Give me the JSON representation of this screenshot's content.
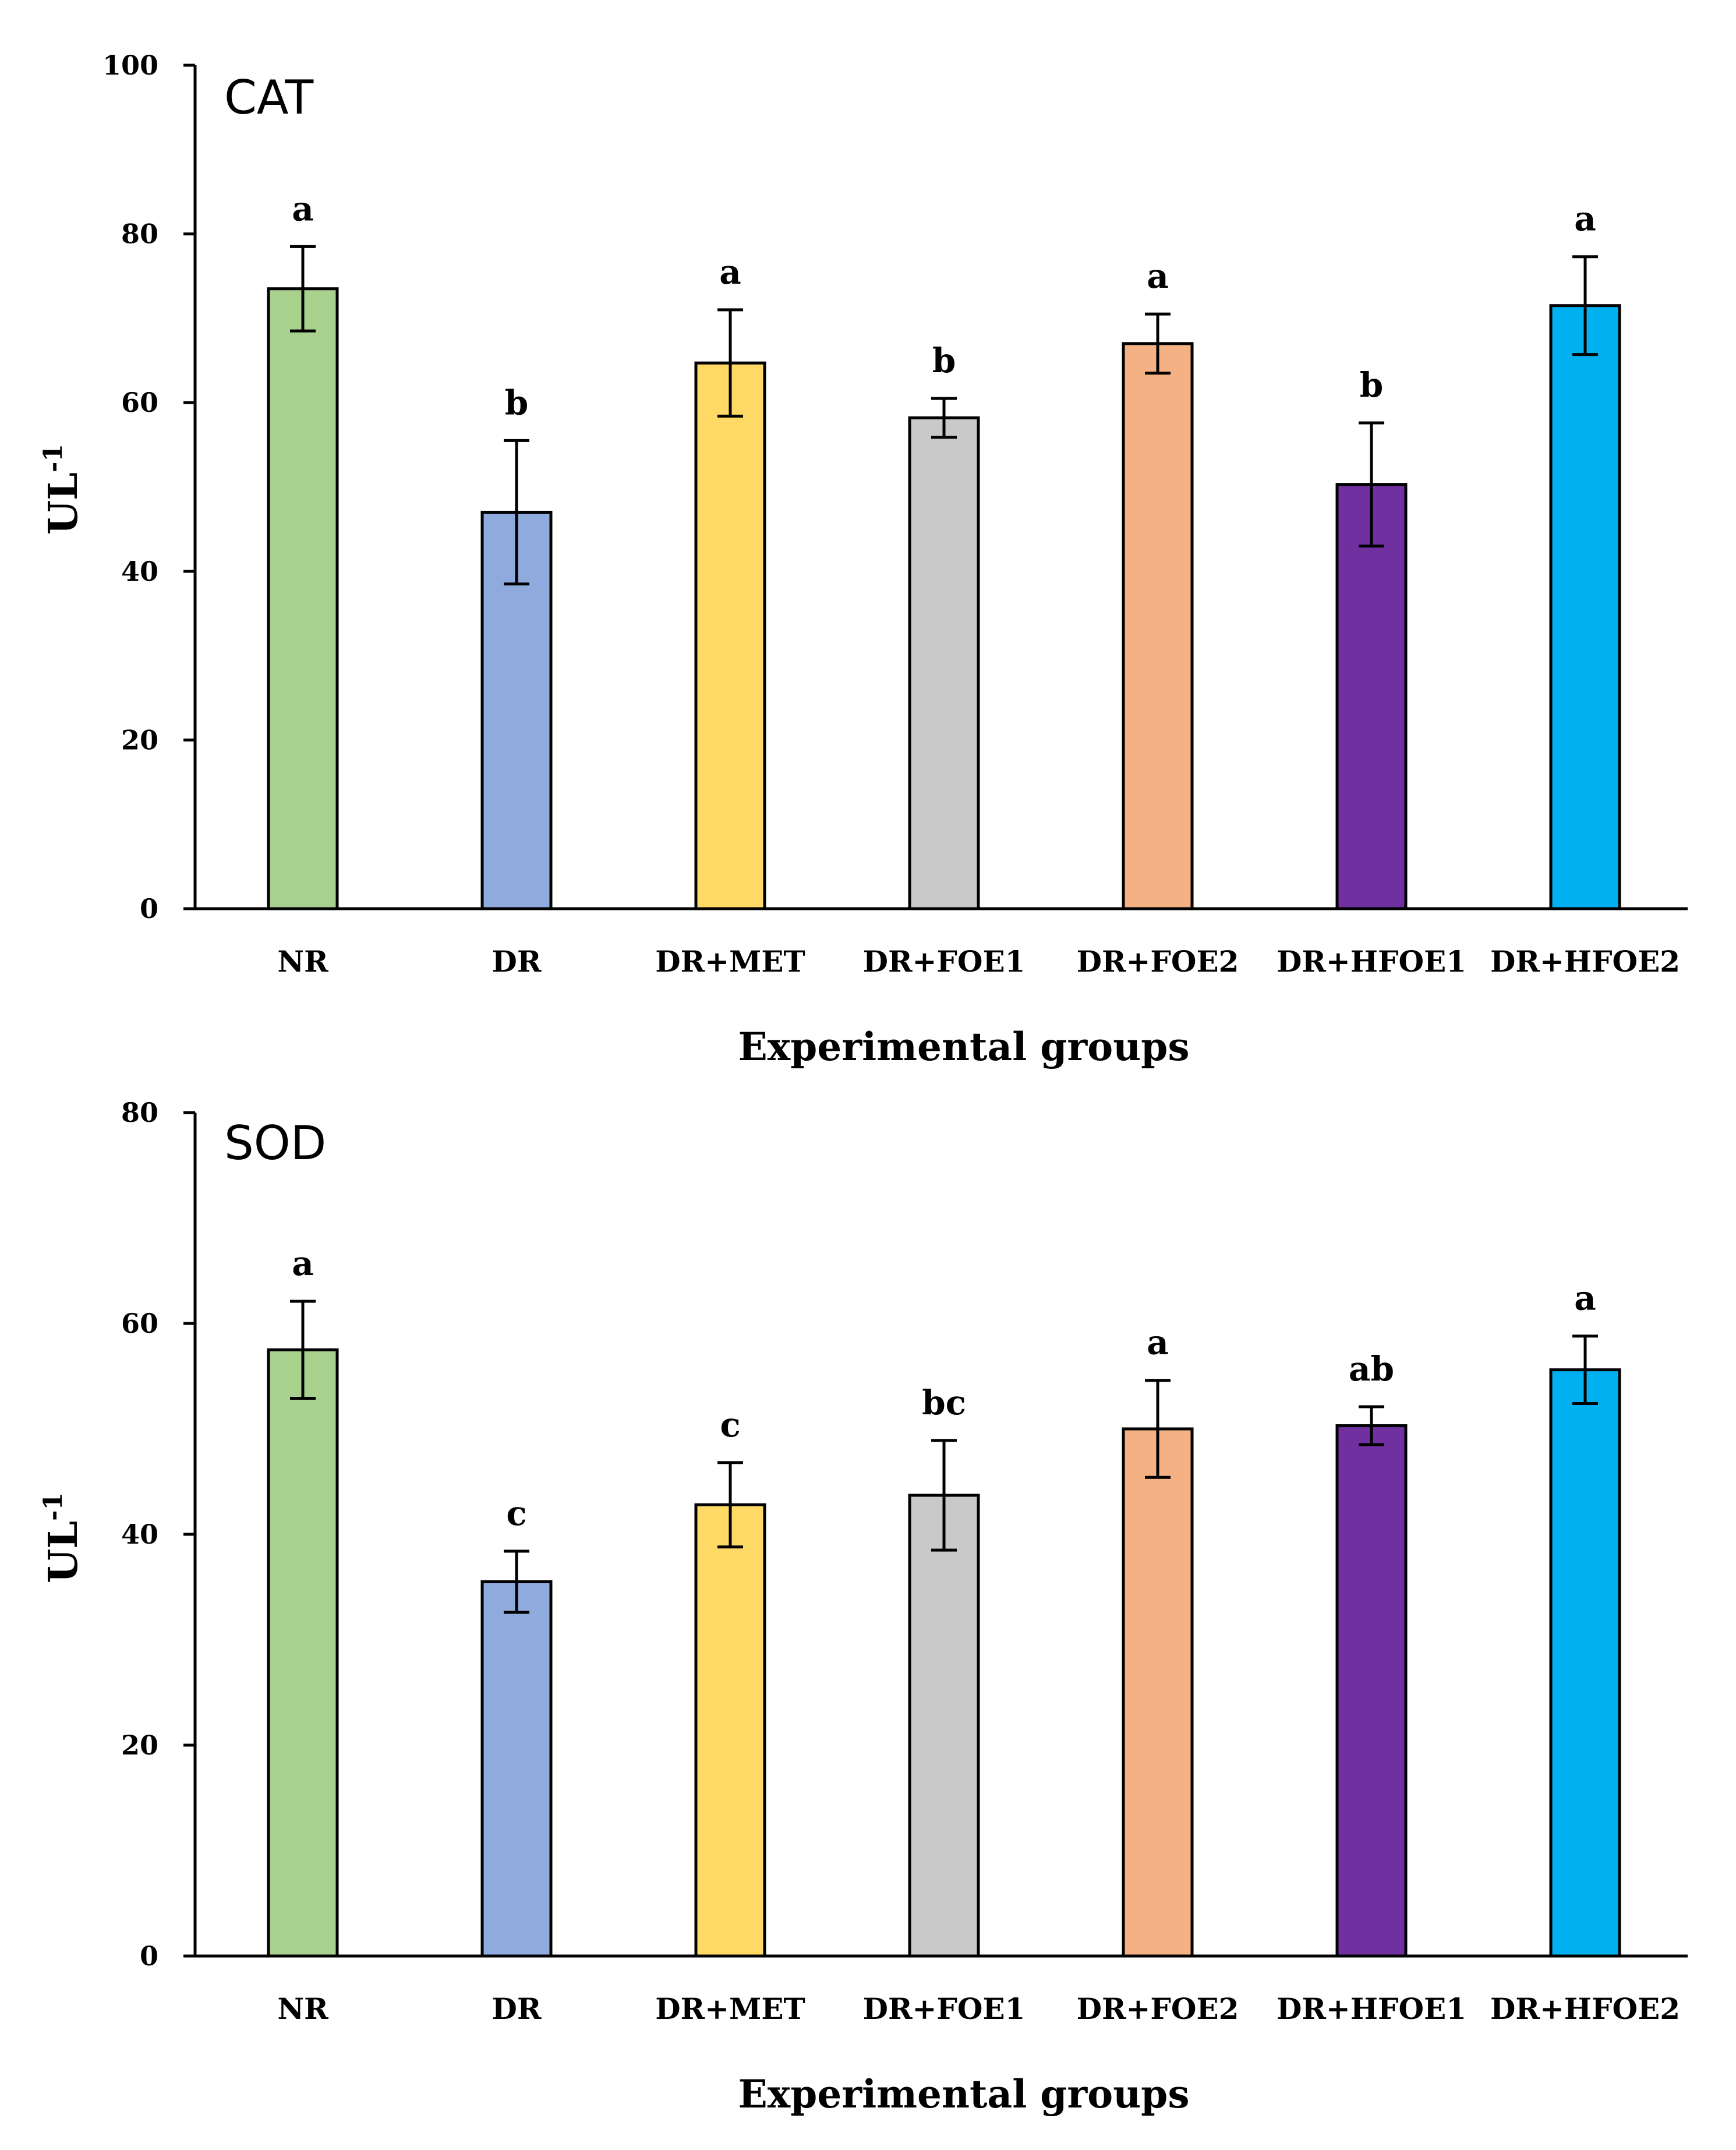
{
  "chart_data": [
    {
      "type": "bar",
      "title": "CAT",
      "xlabel": "Experimental groups",
      "ylabel": "UL",
      "ylabel_superscript": "-1",
      "ylim": [
        0,
        100
      ],
      "yticks": [
        0,
        20,
        40,
        60,
        80,
        100
      ],
      "categories": [
        "NR",
        "DR",
        "DR+MET",
        "DR+FOE1",
        "DR+FOE2",
        "DR+HFOE1",
        "DR+HFOE2"
      ],
      "values": [
        73.5,
        47,
        64.7,
        58.2,
        67,
        50.3,
        71.5
      ],
      "errors": [
        5,
        8.5,
        6.3,
        2.3,
        3.5,
        7.3,
        5.8
      ],
      "significance": [
        "a",
        "b",
        "a",
        "b",
        "a",
        "b",
        "a"
      ],
      "colors": [
        "#a9d18e",
        "#8faadc",
        "#ffd966",
        "#c9c9c9",
        "#f4b183",
        "#7030a0",
        "#00b0f0"
      ],
      "grid": false
    },
    {
      "type": "bar",
      "title": "SOD",
      "xlabel": "Experimental groups",
      "ylabel": "UL",
      "ylabel_superscript": "-1",
      "ylim": [
        0,
        80
      ],
      "yticks": [
        0,
        20,
        40,
        60,
        80
      ],
      "categories": [
        "NR",
        "DR",
        "DR+MET",
        "DR+FOE1",
        "DR+FOE2",
        "DR+HFOE1",
        "DR+HFOE2"
      ],
      "values": [
        57.5,
        35.5,
        42.8,
        43.7,
        50,
        50.3,
        55.6
      ],
      "errors": [
        4.6,
        2.9,
        4,
        5.2,
        4.6,
        1.8,
        3.2
      ],
      "significance": [
        "a",
        "c",
        "c",
        "bc",
        "a",
        "ab",
        "a"
      ],
      "colors": [
        "#a9d18e",
        "#8faadc",
        "#ffd966",
        "#c9c9c9",
        "#f4b183",
        "#7030a0",
        "#00b0f0"
      ],
      "grid": false
    }
  ]
}
